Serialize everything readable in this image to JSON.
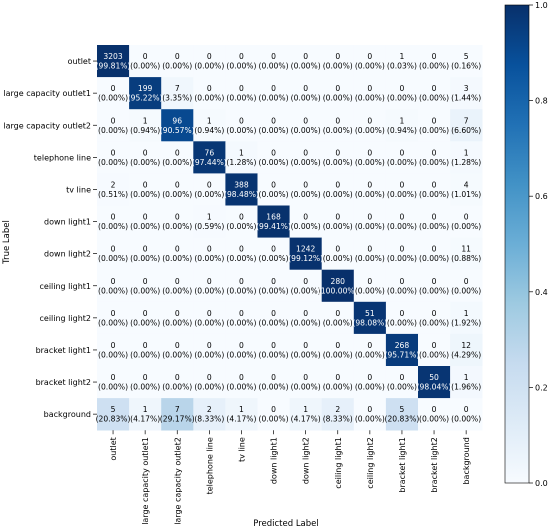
{
  "chart_data": {
    "type": "heatmap",
    "title": "",
    "xlabel": "Predicted Label",
    "ylabel": "True Label",
    "labels": [
      "outlet",
      "large capacity outlet1",
      "large capacity outlet2",
      "telephone line",
      "tv line",
      "down light1",
      "down light2",
      "ceiling light1",
      "ceiling light2",
      "bracket light1",
      "bracket light2",
      "background"
    ],
    "counts": [
      [
        3203,
        0,
        0,
        0,
        0,
        0,
        0,
        0,
        0,
        1,
        0,
        5
      ],
      [
        0,
        199,
        7,
        0,
        0,
        0,
        0,
        0,
        0,
        0,
        0,
        3
      ],
      [
        0,
        1,
        96,
        1,
        0,
        0,
        0,
        0,
        0,
        1,
        0,
        7
      ],
      [
        0,
        0,
        0,
        76,
        1,
        0,
        0,
        0,
        0,
        0,
        0,
        1
      ],
      [
        2,
        0,
        0,
        0,
        388,
        0,
        0,
        0,
        0,
        0,
        0,
        4
      ],
      [
        0,
        0,
        0,
        1,
        0,
        168,
        0,
        0,
        0,
        0,
        0,
        0
      ],
      [
        0,
        0,
        0,
        0,
        0,
        0,
        1242,
        0,
        0,
        0,
        0,
        11
      ],
      [
        0,
        0,
        0,
        0,
        0,
        0,
        0,
        280,
        0,
        0,
        0,
        0
      ],
      [
        0,
        0,
        0,
        0,
        0,
        0,
        0,
        0,
        51,
        0,
        0,
        1
      ],
      [
        0,
        0,
        0,
        0,
        0,
        0,
        0,
        0,
        0,
        268,
        0,
        12
      ],
      [
        0,
        0,
        0,
        0,
        0,
        0,
        0,
        0,
        0,
        0,
        50,
        1
      ],
      [
        5,
        1,
        7,
        2,
        1,
        0,
        1,
        2,
        0,
        5,
        0,
        0
      ]
    ],
    "percent_labels": [
      [
        "(99.81%)",
        "(0.00%)",
        "(0.00%)",
        "(0.00%)",
        "(0.00%)",
        "(0.00%)",
        "(0.00%)",
        "(0.00%)",
        "(0.00%)",
        "(0.03%)",
        "(0.00%)",
        "(0.16%)"
      ],
      [
        "(0.00%)",
        "(95.22%)",
        "(3.35%)",
        "(0.00%)",
        "(0.00%)",
        "(0.00%)",
        "(0.00%)",
        "(0.00%)",
        "(0.00%)",
        "(0.00%)",
        "(0.00%)",
        "(1.44%)"
      ],
      [
        "(0.00%)",
        "(0.94%)",
        "(90.57%)",
        "(0.94%)",
        "(0.00%)",
        "(0.00%)",
        "(0.00%)",
        "(0.00%)",
        "(0.00%)",
        "(0.94%)",
        "(0.00%)",
        "(6.60%)"
      ],
      [
        "(0.00%)",
        "(0.00%)",
        "(0.00%)",
        "(97.44%)",
        "(1.28%)",
        "(0.00%)",
        "(0.00%)",
        "(0.00%)",
        "(0.00%)",
        "(0.00%)",
        "(0.00%)",
        "(1.28%)"
      ],
      [
        "(0.51%)",
        "(0.00%)",
        "(0.00%)",
        "(0.00%)",
        "(98.48%)",
        "(0.00%)",
        "(0.00%)",
        "(0.00%)",
        "(0.00%)",
        "(0.00%)",
        "(0.00%)",
        "(1.01%)"
      ],
      [
        "(0.00%)",
        "(0.00%)",
        "(0.00%)",
        "(0.59%)",
        "(0.00%)",
        "(99.41%)",
        "(0.00%)",
        "(0.00%)",
        "(0.00%)",
        "(0.00%)",
        "(0.00%)",
        "(0.00%)"
      ],
      [
        "(0.00%)",
        "(0.00%)",
        "(0.00%)",
        "(0.00%)",
        "(0.00%)",
        "(0.00%)",
        "(99.12%)",
        "(0.00%)",
        "(0.00%)",
        "(0.00%)",
        "(0.00%)",
        "(0.88%)"
      ],
      [
        "(0.00%)",
        "(0.00%)",
        "(0.00%)",
        "(0.00%)",
        "(0.00%)",
        "(0.00%)",
        "(0.00%)",
        "(100.00%)",
        "(0.00%)",
        "(0.00%)",
        "(0.00%)",
        "(0.00%)"
      ],
      [
        "(0.00%)",
        "(0.00%)",
        "(0.00%)",
        "(0.00%)",
        "(0.00%)",
        "(0.00%)",
        "(0.00%)",
        "(0.00%)",
        "(98.08%)",
        "(0.00%)",
        "(0.00%)",
        "(1.92%)"
      ],
      [
        "(0.00%)",
        "(0.00%)",
        "(0.00%)",
        "(0.00%)",
        "(0.00%)",
        "(0.00%)",
        "(0.00%)",
        "(0.00%)",
        "(0.00%)",
        "(95.71%)",
        "(0.00%)",
        "(4.29%)"
      ],
      [
        "(0.00%)",
        "(0.00%)",
        "(0.00%)",
        "(0.00%)",
        "(0.00%)",
        "(0.00%)",
        "(0.00%)",
        "(0.00%)",
        "(0.00%)",
        "(0.00%)",
        "(98.04%)",
        "(1.96%)"
      ],
      [
        "(20.83%)",
        "(4.17%)",
        "(29.17%)",
        "(8.33%)",
        "(4.17%)",
        "(0.00%)",
        "(4.17%)",
        "(8.33%)",
        "(0.00%)",
        "(20.83%)",
        "(0.00%)",
        "(0.00%)"
      ]
    ],
    "fractions": [
      [
        0.9981,
        0,
        0,
        0,
        0,
        0,
        0,
        0,
        0,
        0.0003,
        0,
        0.0016
      ],
      [
        0,
        0.9522,
        0.0335,
        0,
        0,
        0,
        0,
        0,
        0,
        0,
        0,
        0.0144
      ],
      [
        0,
        0.0094,
        0.9057,
        0.0094,
        0,
        0,
        0,
        0,
        0,
        0.0094,
        0,
        0.066
      ],
      [
        0,
        0,
        0,
        0.9744,
        0.0128,
        0,
        0,
        0,
        0,
        0,
        0,
        0.0128
      ],
      [
        0.0051,
        0,
        0,
        0,
        0.9848,
        0,
        0,
        0,
        0,
        0,
        0,
        0.0101
      ],
      [
        0,
        0,
        0,
        0.0059,
        0,
        0.9941,
        0,
        0,
        0,
        0,
        0,
        0
      ],
      [
        0,
        0,
        0,
        0,
        0,
        0,
        0.9912,
        0,
        0,
        0,
        0,
        0.0088
      ],
      [
        0,
        0,
        0,
        0,
        0,
        0,
        0,
        1.0,
        0,
        0,
        0,
        0
      ],
      [
        0,
        0,
        0,
        0,
        0,
        0,
        0,
        0,
        0.9808,
        0,
        0,
        0.0192
      ],
      [
        0,
        0,
        0,
        0,
        0,
        0,
        0,
        0,
        0,
        0.9571,
        0,
        0.0429
      ],
      [
        0,
        0,
        0,
        0,
        0,
        0,
        0,
        0,
        0,
        0,
        0.9804,
        0.0196
      ],
      [
        0.2083,
        0.0417,
        0.2917,
        0.0833,
        0.0417,
        0,
        0.0417,
        0.0833,
        0,
        0.2083,
        0,
        0
      ]
    ],
    "colorbar": {
      "range": [
        0.0,
        1.0
      ],
      "ticks": [
        "0.0",
        "0.2",
        "0.4",
        "0.6",
        "0.8",
        "1.0"
      ],
      "colormap": [
        "#f7fbff",
        "#deebf7",
        "#c6dbef",
        "#9ecae1",
        "#6baed6",
        "#4292c6",
        "#2171b5",
        "#08519c",
        "#08306b"
      ]
    },
    "text_color_light": "#ffffff",
    "text_color_dark": "#000000",
    "grid": false,
    "legend": "colorbar-right"
  }
}
